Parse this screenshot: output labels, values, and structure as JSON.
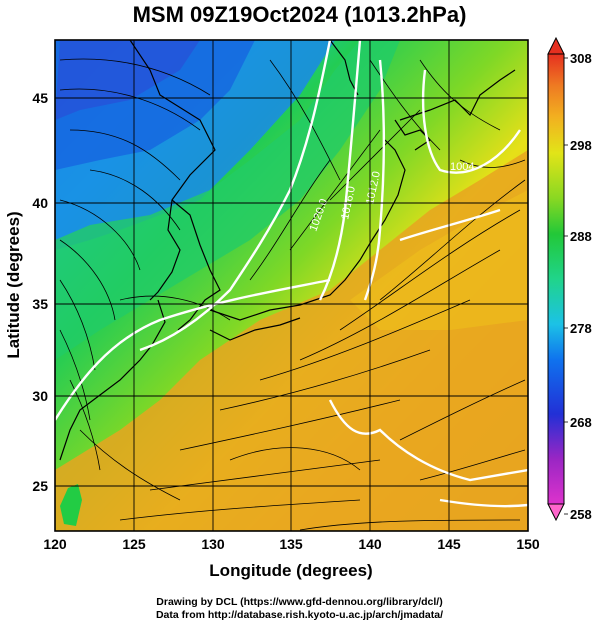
{
  "title": "MSM 09Z19Oct2024 (1013.2hPa)",
  "map": {
    "xlabel": "Longitude (degrees)",
    "ylabel": "Latitude  (degrees)",
    "x_ticks": [
      "120",
      "125",
      "130",
      "135",
      "140",
      "145",
      "150"
    ],
    "y_ticks": [
      "25",
      "30",
      "35",
      "40",
      "45"
    ],
    "x_range": [
      120,
      150
    ],
    "y_range": [
      22.5,
      47.7
    ],
    "contour_labels": [
      "1004",
      "1012.0",
      "1016.0",
      "1020.0"
    ]
  },
  "colorbar": {
    "ticks": [
      "308",
      "298",
      "288",
      "278",
      "268",
      "258"
    ],
    "range": [
      258,
      308
    ],
    "colors": [
      "#ff66cc",
      "#aa22cc",
      "#2222dd",
      "#0066ee",
      "#22bbee",
      "#22ddaa",
      "#22cc33",
      "#77dd22",
      "#ccee11",
      "#eedd11",
      "#f0a020",
      "#ee7722",
      "#ee3322"
    ]
  },
  "credits": {
    "line1": "Drawing by DCL (https://www.gfd-dennou.org/library/dcl/)",
    "line2": "Data from http://database.rish.kyoto-u.ac.jp/arch/jmadata/"
  },
  "colors": {
    "background": "#ffffff",
    "contour": "#ffffff",
    "coast": "#000000",
    "grid": "#000000"
  }
}
